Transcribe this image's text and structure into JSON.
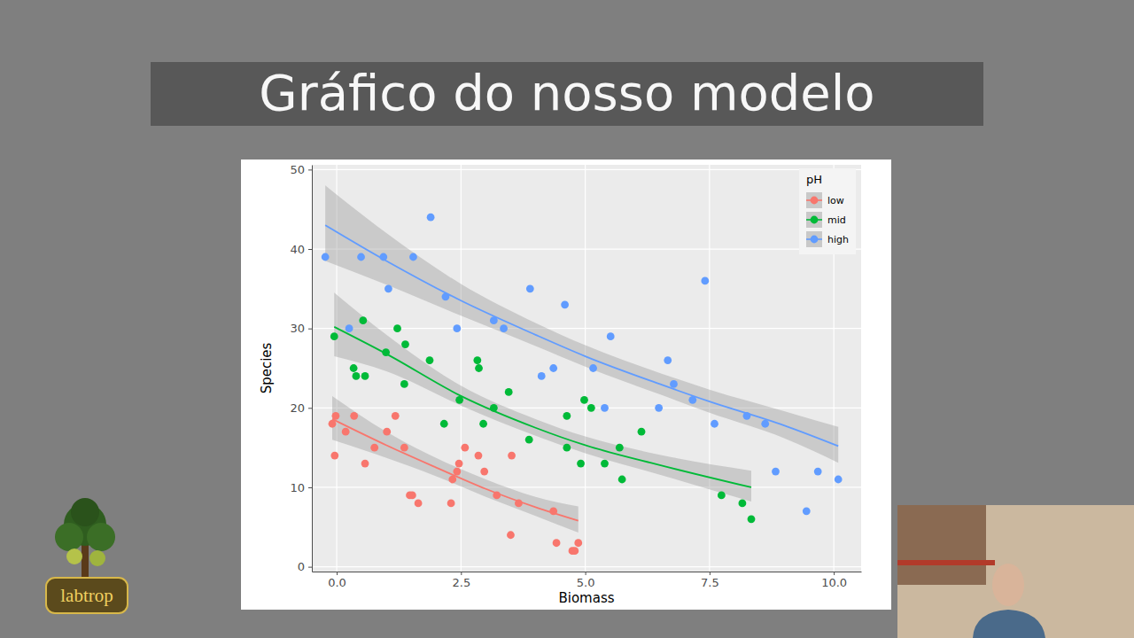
{
  "chart_data": {
    "type": "scatter",
    "title": "Gráfico do nosso modelo",
    "x_label": "Biomass",
    "y_label": "Species",
    "legend_title": "pH",
    "legend": "top-right",
    "grid": true,
    "marker": "circle",
    "xlim": [
      -0.5,
      10.55
    ],
    "ylim": [
      -0.6,
      50.6
    ],
    "xticks": [
      {
        "value": 0,
        "label": "0.0"
      },
      2.5,
      {
        "value": 5,
        "label": "5.0"
      },
      7.5,
      {
        "value": 10,
        "label": "10.0"
      }
    ],
    "yticks": [
      0,
      10,
      20,
      30,
      40,
      50
    ],
    "series": [
      {
        "name": "low",
        "color": "#F8766D",
        "x": [
          -0.09,
          -0.02,
          -0.04,
          0.18,
          0.35,
          0.57,
          0.76,
          1.01,
          1.18,
          1.36,
          1.47,
          1.52,
          1.64,
          2.3,
          2.33,
          2.42,
          2.46,
          2.58,
          2.85,
          2.97,
          3.22,
          3.5,
          3.52,
          3.66,
          4.36,
          4.42,
          4.74,
          4.79,
          4.86
        ],
        "values": [
          18,
          19,
          14,
          17,
          19,
          13,
          15,
          17,
          19,
          15,
          9,
          9,
          8,
          8,
          11,
          12,
          13,
          15,
          14,
          12,
          9,
          4,
          14,
          8,
          7,
          3,
          2,
          2,
          3
        ],
        "fit": {
          "x": [
            -0.09,
            1,
            2,
            3,
            4,
            4.86
          ],
          "values": [
            18.6,
            15.3,
            12.5,
            9.8,
            7.5,
            5.8
          ],
          "lower": [
            16.0,
            13.7,
            11.4,
            8.8,
            6.4,
            4.3
          ],
          "upper": [
            21.5,
            17.0,
            13.7,
            11.0,
            8.8,
            7.6
          ]
        }
      },
      {
        "name": "mid",
        "color": "#00BA38",
        "x": [
          -0.05,
          0.53,
          0.34,
          0.39,
          0.57,
          0.99,
          1.22,
          1.38,
          1.36,
          1.87,
          2.16,
          2.47,
          2.83,
          2.86,
          2.95,
          3.16,
          3.46,
          3.87,
          4.63,
          4.63,
          4.91,
          4.98,
          5.12,
          5.39,
          5.69,
          5.74,
          6.13,
          7.74,
          8.16,
          8.34
        ],
        "values": [
          29,
          31,
          25,
          24,
          24,
          27,
          30,
          28,
          23,
          26,
          18,
          21,
          26,
          25,
          18,
          20,
          22,
          16,
          19,
          15,
          13,
          21,
          20,
          13,
          15,
          11,
          17,
          9,
          8,
          6
        ],
        "fit": {
          "x": [
            -0.05,
            1,
            2.5,
            4,
            5,
            6.5,
            8.34
          ],
          "values": [
            30.2,
            26.8,
            21.5,
            17.5,
            15.3,
            12.8,
            10.0
          ],
          "lower": [
            26.5,
            24.6,
            20.3,
            16.5,
            14.3,
            11.6,
            8.2
          ],
          "upper": [
            34.5,
            29.2,
            22.8,
            18.6,
            16.4,
            14.1,
            12.1
          ]
        }
      },
      {
        "name": "high",
        "color": "#619CFF",
        "x": [
          -0.23,
          0.25,
          0.49,
          0.94,
          1.04,
          1.54,
          1.89,
          2.19,
          2.42,
          3.16,
          3.36,
          3.89,
          4.12,
          4.36,
          4.59,
          5.16,
          5.39,
          5.51,
          6.48,
          6.66,
          6.78,
          7.16,
          7.41,
          7.6,
          8.25,
          8.62,
          8.83,
          9.45,
          9.68,
          10.09
        ],
        "values": [
          39,
          30,
          39,
          39,
          35,
          39,
          44,
          34,
          30,
          31,
          30,
          35,
          24,
          25,
          33,
          25,
          20,
          29,
          20,
          26,
          23,
          21,
          36,
          18,
          19,
          18,
          12,
          7,
          12,
          11
        ],
        "fit": {
          "x": [
            -0.23,
            1,
            2.5,
            4,
            5,
            6.5,
            7.5,
            9,
            10.09
          ],
          "values": [
            43.0,
            38.5,
            33.5,
            29.2,
            26.5,
            23.0,
            20.8,
            17.8,
            15.2
          ],
          "lower": [
            38.5,
            35.5,
            31.6,
            27.8,
            25.2,
            21.7,
            19.4,
            16.2,
            13.1
          ],
          "upper": [
            48.0,
            42.0,
            35.6,
            30.7,
            27.9,
            24.4,
            22.3,
            19.6,
            17.6
          ]
        }
      }
    ]
  },
  "logo": {
    "text": "labtrop"
  }
}
